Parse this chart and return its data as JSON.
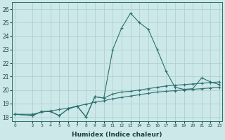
{
  "xlabel": "Humidex (Indice chaleur)",
  "bg_color": "#cce8e8",
  "grid_color": "#aacccc",
  "line_color": "#2d7070",
  "x_values": [
    0,
    2,
    3,
    4,
    5,
    6,
    7,
    8,
    9,
    10,
    11,
    12,
    13,
    14,
    15,
    16,
    17,
    18,
    19,
    20,
    21,
    22,
    23
  ],
  "series1": [
    18.2,
    18.1,
    18.4,
    18.4,
    18.1,
    18.6,
    18.8,
    18.0,
    19.5,
    19.4,
    23.0,
    24.6,
    25.7,
    25.0,
    24.5,
    23.0,
    21.4,
    20.2,
    20.05,
    20.1,
    20.9,
    20.6,
    20.4
  ],
  "series2": [
    18.2,
    18.1,
    18.4,
    18.4,
    18.1,
    18.6,
    18.8,
    18.0,
    19.5,
    19.4,
    19.7,
    19.85,
    19.9,
    20.0,
    20.1,
    20.2,
    20.3,
    20.35,
    20.4,
    20.45,
    20.5,
    20.55,
    20.6
  ],
  "series3": [
    18.2,
    18.2,
    18.35,
    18.45,
    18.55,
    18.65,
    18.8,
    18.95,
    19.1,
    19.2,
    19.35,
    19.45,
    19.55,
    19.65,
    19.75,
    19.85,
    19.9,
    19.95,
    20.0,
    20.05,
    20.1,
    20.15,
    20.2
  ],
  "ylim": [
    17.7,
    26.5
  ],
  "yticks": [
    18,
    19,
    20,
    21,
    22,
    23,
    24,
    25,
    26
  ],
  "xticks": [
    0,
    2,
    3,
    4,
    5,
    6,
    7,
    8,
    9,
    10,
    11,
    12,
    13,
    14,
    15,
    16,
    17,
    18,
    19,
    20,
    21,
    22,
    23
  ],
  "xlim": [
    -0.3,
    23.3
  ]
}
